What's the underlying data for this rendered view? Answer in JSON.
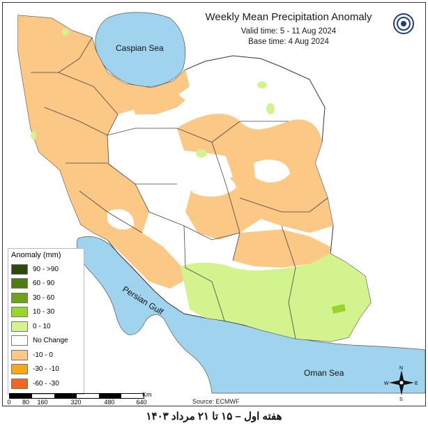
{
  "header": {
    "title": "Weekly Mean Precipitation Anomaly",
    "valid_time": "Valid time: 5 - 11 Aug 2024",
    "base_time": "Base time: 4 Aug 2024"
  },
  "map": {
    "labels": {
      "caspian": "Caspian Sea",
      "persian_gulf": "Persian Gulf",
      "oman_sea": "Oman Sea"
    },
    "colors": {
      "sea": "#9fd3ee",
      "no_change": "#ffffff",
      "neg_10_0": "#fbc885",
      "pos_0_10": "#d3f38f",
      "pos_10_30": "#98d62b"
    }
  },
  "legend": {
    "title": "Anomaly (mm)",
    "items": [
      {
        "label": "90 - >90",
        "color": "#2d4a0b"
      },
      {
        "label": "60 - 90",
        "color": "#4f7b10"
      },
      {
        "label": "30 - 60",
        "color": "#6fa317"
      },
      {
        "label": "10 - 30",
        "color": "#98d62b"
      },
      {
        "label": "0 - 10",
        "color": "#d3f38f"
      },
      {
        "label": "No Change",
        "color": "#ffffff"
      },
      {
        "label": "-10 - 0",
        "color": "#fbc885"
      },
      {
        "label": "-30 - -10",
        "color": "#f6a71c"
      },
      {
        "label": "-60 - -30",
        "color": "#f26522"
      }
    ]
  },
  "scale": {
    "ticks": [
      "0",
      "80",
      "160",
      "320",
      "480",
      "640"
    ],
    "unit": "Km"
  },
  "source": "Source: ECMWF",
  "compass": {
    "n": "N",
    "s": "S",
    "e": "E",
    "w": "W"
  },
  "footer": "هفته اول – ۱۵ تا ۲۱ مرداد ۱۴۰۳"
}
